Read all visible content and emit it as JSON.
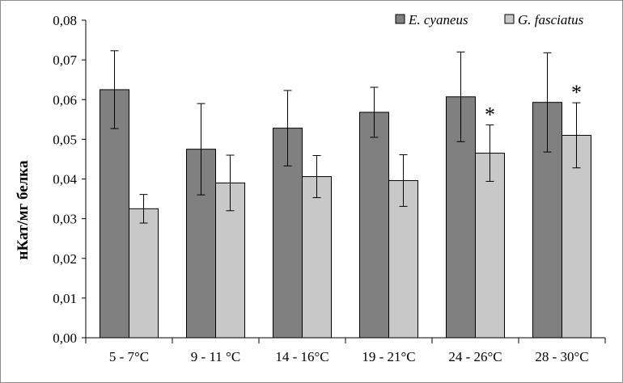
{
  "chart_data": {
    "type": "bar",
    "title": "",
    "xlabel": "",
    "ylabel": "нКат/мг белка",
    "ylim": [
      0,
      0.08
    ],
    "ytick_step": 0.01,
    "ytick_labels": [
      "0,00",
      "0,01",
      "0,02",
      "0,03",
      "0,04",
      "0,05",
      "0,06",
      "0,07",
      "0,08"
    ],
    "categories": [
      "5 - 7°C",
      "9 - 11 °C",
      "14 - 16°C",
      "19 - 21°C",
      "24 - 26°C",
      "28 - 30°C"
    ],
    "legend_position": "top-right",
    "series": [
      {
        "name": "E. cyaneus",
        "color": "#808080",
        "values": [
          0.0625,
          0.0475,
          0.0528,
          0.0568,
          0.0607,
          0.0593
        ],
        "errors": [
          0.0098,
          0.0115,
          0.0095,
          0.0063,
          0.0113,
          0.0125
        ]
      },
      {
        "name": "G. fasciatus",
        "color": "#c8c8c8",
        "values": [
          0.0325,
          0.039,
          0.0406,
          0.0396,
          0.0465,
          0.051
        ],
        "errors": [
          0.0036,
          0.007,
          0.0053,
          0.0065,
          0.0071,
          0.0082
        ]
      }
    ],
    "annotations": [
      {
        "category_index": 4,
        "series_index": 1,
        "text": "*"
      },
      {
        "category_index": 5,
        "series_index": 1,
        "text": "*"
      }
    ]
  }
}
